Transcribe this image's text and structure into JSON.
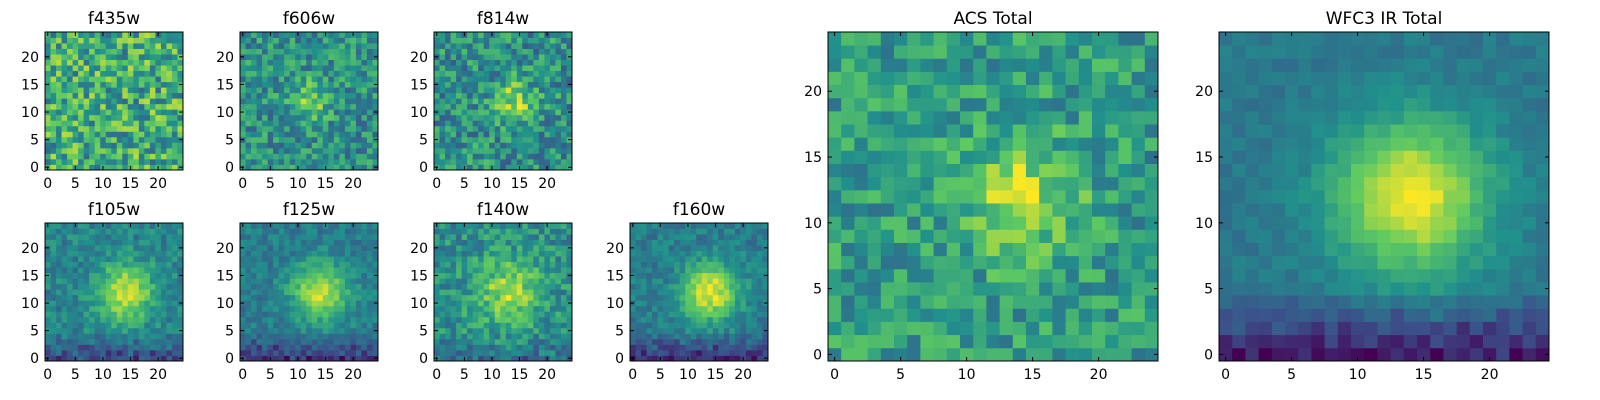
{
  "colormap": [
    "#440154",
    "#3b528b",
    "#21918c",
    "#5ec962",
    "#fde725"
  ],
  "chart_data": [
    {
      "type": "heatmap",
      "title": "f435w",
      "grid_size": 25,
      "xticks": [
        0,
        5,
        10,
        15,
        20
      ],
      "yticks": [
        0,
        5,
        10,
        15,
        20
      ],
      "xlim": [
        0,
        24
      ],
      "ylim": [
        0,
        24
      ],
      "grid": false,
      "blob": {
        "center": [
          12,
          12
        ],
        "sigma": 3,
        "amplitude": 0.0
      },
      "noise": 0.28,
      "base": 0.62,
      "bottom_dark": 0.0
    },
    {
      "type": "heatmap",
      "title": "f606w",
      "grid_size": 25,
      "xticks": [
        0,
        5,
        10,
        15,
        20
      ],
      "yticks": [
        0,
        5,
        10,
        15,
        20
      ],
      "xlim": [
        0,
        24
      ],
      "ylim": [
        0,
        24
      ],
      "grid": false,
      "blob": {
        "center": [
          12,
          12
        ],
        "sigma": 2.5,
        "amplitude": 0.3
      },
      "noise": 0.2,
      "base": 0.5,
      "bottom_dark": 0.0
    },
    {
      "type": "heatmap",
      "title": "f814w",
      "grid_size": 25,
      "xticks": [
        0,
        5,
        10,
        15,
        20
      ],
      "yticks": [
        0,
        5,
        10,
        15,
        20
      ],
      "xlim": [
        0,
        24
      ],
      "ylim": [
        0,
        24
      ],
      "grid": false,
      "blob": {
        "center": [
          14,
          12
        ],
        "sigma": 2.5,
        "amplitude": 0.35
      },
      "noise": 0.22,
      "base": 0.5,
      "bottom_dark": 0.0
    },
    {
      "type": "heatmap",
      "title": "f105w",
      "grid_size": 25,
      "xticks": [
        0,
        5,
        10,
        15,
        20
      ],
      "yticks": [
        0,
        5,
        10,
        15,
        20
      ],
      "xlim": [
        0,
        24
      ],
      "ylim": [
        0,
        24
      ],
      "grid": false,
      "blob": {
        "center": [
          14,
          12
        ],
        "sigma": 3.5,
        "amplitude": 0.5
      },
      "noise": 0.12,
      "base": 0.45,
      "bottom_dark": 0.25
    },
    {
      "type": "heatmap",
      "title": "f125w",
      "grid_size": 25,
      "xticks": [
        0,
        5,
        10,
        15,
        20
      ],
      "yticks": [
        0,
        5,
        10,
        15,
        20
      ],
      "xlim": [
        0,
        24
      ],
      "ylim": [
        0,
        24
      ],
      "grid": false,
      "blob": {
        "center": [
          14,
          12
        ],
        "sigma": 3.5,
        "amplitude": 0.5
      },
      "noise": 0.1,
      "base": 0.42,
      "bottom_dark": 0.3
    },
    {
      "type": "heatmap",
      "title": "f140w",
      "grid_size": 25,
      "xticks": [
        0,
        5,
        10,
        15,
        20
      ],
      "yticks": [
        0,
        5,
        10,
        15,
        20
      ],
      "xlim": [
        0,
        24
      ],
      "ylim": [
        0,
        24
      ],
      "grid": false,
      "blob": {
        "center": [
          13,
          12
        ],
        "sigma": 4,
        "amplitude": 0.35
      },
      "noise": 0.16,
      "base": 0.5,
      "bottom_dark": 0.15
    },
    {
      "type": "heatmap",
      "title": "f160w",
      "grid_size": 25,
      "xticks": [
        0,
        5,
        10,
        15,
        20
      ],
      "yticks": [
        0,
        5,
        10,
        15,
        20
      ],
      "xlim": [
        0,
        24
      ],
      "ylim": [
        0,
        24
      ],
      "grid": false,
      "blob": {
        "center": [
          14,
          12
        ],
        "sigma": 3.5,
        "amplitude": 0.55
      },
      "noise": 0.1,
      "base": 0.42,
      "bottom_dark": 0.3
    },
    {
      "type": "heatmap",
      "title": "ACS Total",
      "grid_size": 25,
      "xticks": [
        0,
        5,
        10,
        15,
        20
      ],
      "yticks": [
        0,
        5,
        10,
        15,
        20
      ],
      "xlim": [
        0,
        24
      ],
      "ylim": [
        0,
        24
      ],
      "grid": false,
      "blob": {
        "center": [
          14,
          12
        ],
        "sigma": 3,
        "amplitude": 0.35
      },
      "noise": 0.18,
      "base": 0.55,
      "bottom_dark": 0.0
    },
    {
      "type": "heatmap",
      "title": "WFC3 IR Total",
      "grid_size": 25,
      "xticks": [
        0,
        5,
        10,
        15,
        20
      ],
      "yticks": [
        0,
        5,
        10,
        15,
        20
      ],
      "xlim": [
        0,
        24
      ],
      "ylim": [
        0,
        24
      ],
      "grid": false,
      "blob": {
        "center": [
          14,
          12
        ],
        "sigma": 4,
        "amplitude": 0.6
      },
      "noise": 0.05,
      "base": 0.4,
      "bottom_dark": 0.35
    }
  ]
}
